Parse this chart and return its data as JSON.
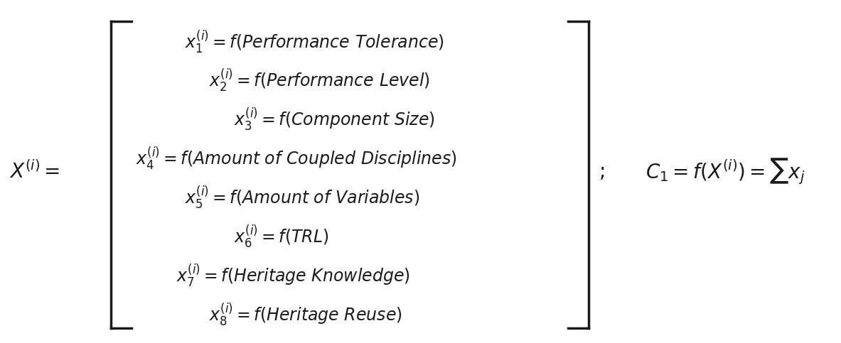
{
  "background_color": "#ffffff",
  "figsize": [
    11.83,
    4.83
  ],
  "dpi": 100,
  "main_equation": "X^{(i)} = \\left[\\begin{array}{l} x_1^{(i)} = f(\\textit{Performance Tolerance}) \\\\ \\quad x_2^{(i)} = f(\\textit{Performance Level}) \\\\ \\quad\\quad x_3^{(i)} = f(\\textit{Component Size}) \\\\ x_4^{(i)} = f(\\textit{Amount of Coupled Disciplines}) \\\\ \\quad x_5^{(i)} = f(\\textit{Amount of Variables}) \\\\ \\quad\\quad x_6^{(i)} = f(\\textit{TRL}) \\\\ \\quad x_7^{(i)} = f(\\textit{Heritage Knowledge}) \\\\ \\quad\\quad x_8^{(i)} = f(\\textit{Heritage Reuse}) \\end{array}\\right];",
  "right_equation": "C_1 = f(X^{(i)}) = \\sum x_j",
  "text_color": "#1a1a1a",
  "font_size": 18
}
